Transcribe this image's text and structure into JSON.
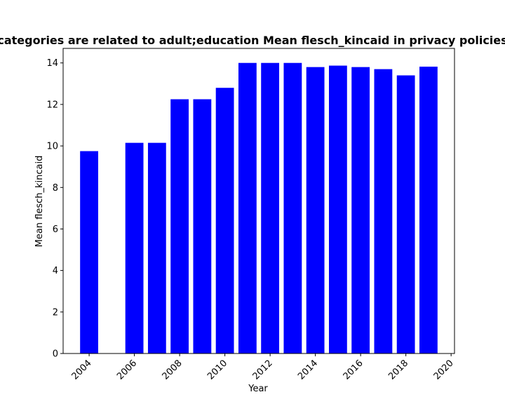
{
  "chart_data": {
    "type": "bar",
    "title": "categories are related to adult;education Mean flesch_kincaid in privacy policies",
    "xlabel": "Year",
    "ylabel": "Mean flesch_kincaid",
    "x": [
      2004,
      2006,
      2007,
      2008,
      2009,
      2010,
      2011,
      2012,
      2013,
      2014,
      2015,
      2016,
      2017,
      2018,
      2019
    ],
    "values": [
      9.75,
      10.15,
      10.15,
      12.25,
      12.25,
      12.8,
      14.0,
      14.0,
      14.0,
      13.8,
      13.87,
      13.8,
      13.7,
      13.4,
      13.82
    ],
    "xlim": [
      2002.85,
      2020.15
    ],
    "ylim": [
      0,
      14.7
    ],
    "xticks": [
      2004,
      2006,
      2008,
      2010,
      2012,
      2014,
      2016,
      2018,
      2020
    ],
    "xtick_labels": [
      "2004",
      "2006",
      "2008",
      "2010",
      "2012",
      "2014",
      "2016",
      "2018",
      "2020"
    ],
    "yticks": [
      0,
      2,
      4,
      6,
      8,
      10,
      12,
      14
    ],
    "ytick_labels": [
      "0",
      "2",
      "4",
      "6",
      "8",
      "10",
      "12",
      "14"
    ],
    "bar_color": "#0000ff",
    "grid": false,
    "legend": "none"
  }
}
